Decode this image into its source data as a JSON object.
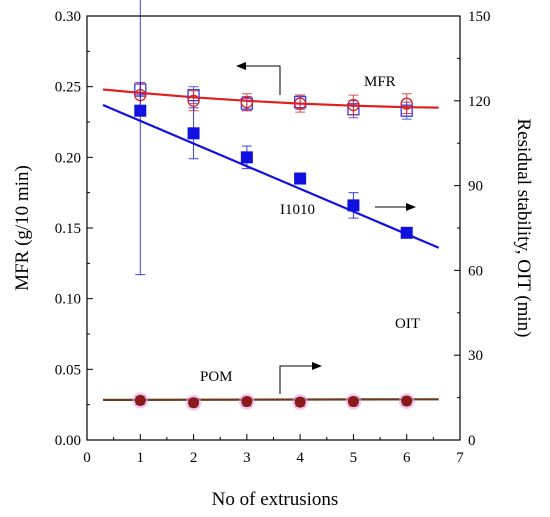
{
  "chart_data": {
    "type": "scatter",
    "xlabel": "No of extrusions",
    "ylabel_left": "MFR (g/10 min)",
    "ylabel_right": "Residual stability, OIT (min)",
    "x_range": [
      0,
      7
    ],
    "x_ticks": [
      "0",
      "1",
      "2",
      "3",
      "4",
      "5",
      "6",
      "7"
    ],
    "y_left_range": [
      0,
      0.3
    ],
    "y_left_ticks": [
      "0.00",
      "0.05",
      "0.10",
      "0.15",
      "0.20",
      "0.25",
      "0.30"
    ],
    "y_right_range": [
      0,
      150
    ],
    "y_right_ticks": [
      "0",
      "30",
      "60",
      "90",
      "120",
      "150"
    ],
    "grid": false,
    "series": [
      {
        "name": "MFR",
        "axis": "left",
        "marker": "open-square",
        "color": "#3a3ae0",
        "x": [
          1,
          2,
          3,
          4,
          5,
          6
        ],
        "y": [
          0.248,
          0.244,
          0.238,
          0.239,
          0.234,
          0.233
        ],
        "err": [
          0.005,
          0.006,
          0.005,
          0.005,
          0.006,
          0.006
        ]
      },
      {
        "name": "MFR",
        "axis": "left",
        "marker": "open-circle",
        "color": "#e02020",
        "x": [
          1,
          2,
          3,
          4,
          5,
          6
        ],
        "y": [
          0.244,
          0.24,
          0.239,
          0.238,
          0.237,
          0.238
        ],
        "err": [
          0.008,
          0.007,
          0.006,
          0.006,
          0.007,
          0.007
        ]
      },
      {
        "name": "I1010",
        "axis": "right",
        "marker": "filled-square",
        "color": "#1010e0",
        "x": [
          1,
          2,
          3,
          4,
          5,
          6
        ],
        "y": [
          116.5,
          108.5,
          100,
          92.5,
          83,
          73.3
        ],
        "err": [
          58,
          9,
          4,
          1.5,
          4.5,
          1
        ]
      },
      {
        "name": "POM",
        "axis": "right",
        "marker": "filled-circle",
        "color": "#8b1a1a",
        "x": [
          1,
          2,
          3,
          4,
          5,
          6
        ],
        "y": [
          14,
          13.2,
          13.6,
          13.4,
          13.6,
          13.8
        ],
        "err": [
          1.5,
          1.5,
          1.5,
          1.5,
          1.5,
          1.5
        ]
      }
    ],
    "fits": [
      {
        "series": "MFR",
        "axis": "left",
        "color": "#e02020",
        "x": [
          0.3,
          1,
          2,
          3,
          4,
          5,
          6,
          6.6
        ],
        "y": [
          0.248,
          0.2456,
          0.2425,
          0.24,
          0.238,
          0.2365,
          0.2355,
          0.2352
        ]
      },
      {
        "series": "I1010",
        "axis": "right",
        "color": "#1010e0",
        "x": [
          0.3,
          6.6
        ],
        "y": [
          118.5,
          68
        ]
      },
      {
        "series": "POM",
        "axis": "right",
        "color": "#6b3a1a",
        "x": [
          0.3,
          6.6
        ],
        "y": [
          14.2,
          14.4
        ]
      }
    ],
    "annotations": [
      "MFR",
      "I1010",
      "OIT",
      "POM"
    ]
  }
}
